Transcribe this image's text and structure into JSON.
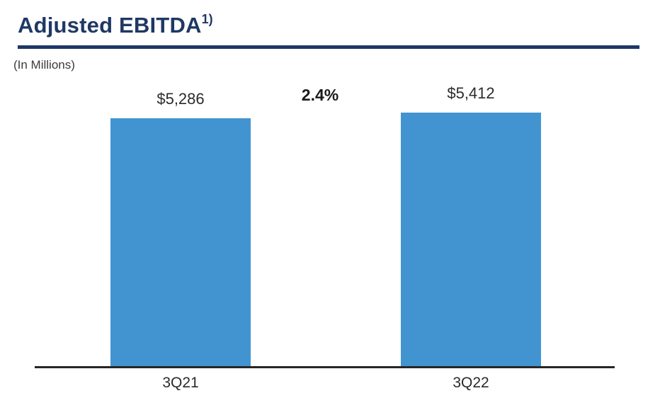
{
  "page": {
    "title": "Adjusted EBITDA",
    "title_superscript": "1)",
    "subtitle": "(In Millions)"
  },
  "colors": {
    "title_navy": "#1F3864",
    "underline_navy": "#1F3864",
    "bar_blue": "#4294D1",
    "axis_line": "#262626",
    "value_label_text": "#2B2B2B",
    "change_label_text": "#1A1A1A",
    "subtitle_text": "#3B3B3B",
    "category_label_text": "#2B2B2B"
  },
  "chart_data": {
    "type": "bar",
    "title": "Adjusted EBITDA 1)",
    "subtitle": "(In Millions)",
    "categories": [
      "3Q21",
      "3Q22"
    ],
    "values": [
      5286,
      5412
    ],
    "value_labels": [
      "$5,286",
      "$5,412"
    ],
    "change_label": "2.4%",
    "xlabel": "",
    "ylabel": "",
    "ylim": [
      0,
      5412
    ],
    "grid": false,
    "legend": false,
    "bar_color": "#4294D1",
    "baseline_visible": true
  }
}
